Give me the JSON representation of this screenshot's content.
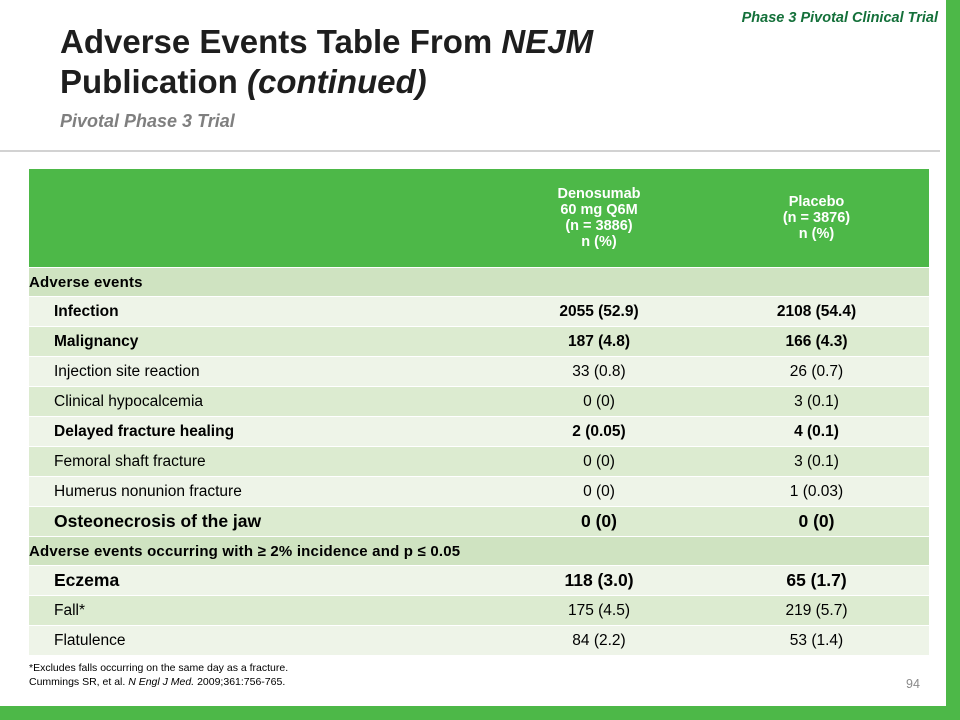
{
  "slide": {
    "corner_label": "Phase 3 Pivotal Clinical Trial",
    "title_line1_main": "Adverse Events Table From ",
    "title_line1_italic": "NEJM",
    "title_line2_main": "Publication ",
    "title_line2_italic": "(continued)",
    "subtitle": "Pivotal Phase 3 Trial",
    "page_number": "94"
  },
  "table": {
    "col1_header": [
      "Denosumab",
      "60 mg Q6M",
      "(n = 3886)",
      "n (%)"
    ],
    "col2_header": [
      "Placebo",
      "(n = 3876)",
      "n (%)"
    ],
    "rows": [
      {
        "label": "Adverse events",
        "v1": "",
        "v2": ""
      },
      {
        "label": "Infection",
        "v1": "2055 (52.9)",
        "v2": "2108 (54.4)"
      },
      {
        "label": "Malignancy",
        "v1": "187 (4.8)",
        "v2": "166 (4.3)"
      },
      {
        "label": "Injection site reaction",
        "v1": "33 (0.8)",
        "v2": "26 (0.7)"
      },
      {
        "label": "Clinical hypocalcemia",
        "v1": "0 (0)",
        "v2": "3 (0.1)"
      },
      {
        "label": "Delayed fracture healing",
        "v1": "2 (0.05)",
        "v2": "4 (0.1)"
      },
      {
        "label": "Femoral shaft fracture",
        "v1": "0 (0)",
        "v2": "3 (0.1)"
      },
      {
        "label": "Humerus nonunion fracture",
        "v1": "0 (0)",
        "v2": "1 (0.03)"
      },
      {
        "label": "Osteonecrosis of the jaw",
        "v1": "0 (0)",
        "v2": "0 (0)"
      },
      {
        "label": "Adverse events occurring with ≥ 2% incidence and p ≤ 0.05",
        "v1": "",
        "v2": ""
      },
      {
        "label": "Eczema",
        "v1": "118 (3.0)",
        "v2": "65 (1.7)"
      },
      {
        "label": "Fall*",
        "v1": "175 (4.5)",
        "v2": "219 (5.7)"
      },
      {
        "label": "Flatulence",
        "v1": "84 (2.2)",
        "v2": "53 (1.4)"
      }
    ]
  },
  "footnote": {
    "line1": "*Excludes falls occurring on the same day as a fracture.",
    "line2_pre": "Cummings SR, et al. ",
    "line2_italic": "N Engl J Med.",
    "line2_post": " 2009;361:756-765."
  },
  "colors": {
    "accent_green": "#4db848",
    "row_light": "#eef4e8",
    "row_mid": "#dcebd0",
    "section_row": "#cfe3c1",
    "corner_label": "#14703a",
    "subtitle": "#7f7f7f"
  }
}
